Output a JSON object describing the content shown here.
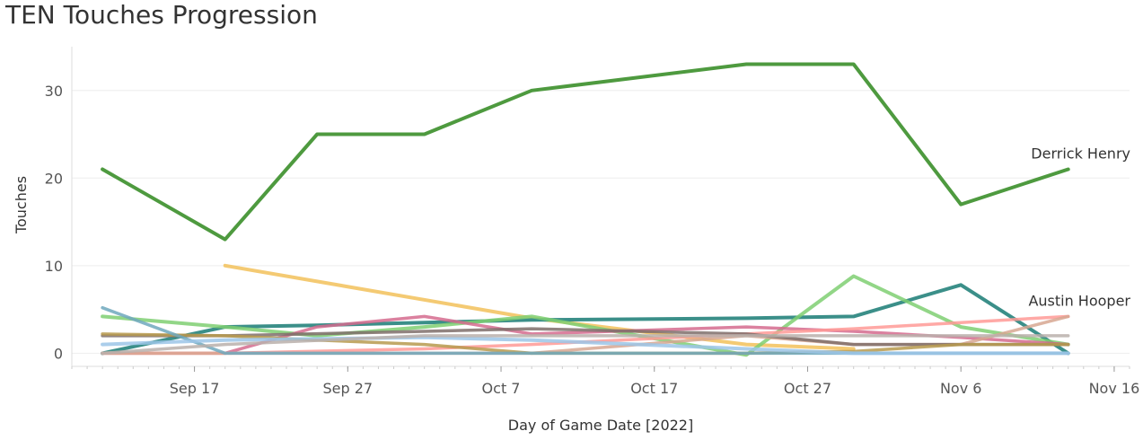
{
  "chart_data": {
    "type": "line",
    "title": "TEN Touches Progression",
    "xlabel": "Day of Game Date [2022]",
    "ylabel": "Touches",
    "x_ticks": [
      "Sep 17",
      "Sep 27",
      "Oct 7",
      "Oct 17",
      "Oct 27",
      "Nov 6",
      "Nov 16"
    ],
    "y_ticks": [
      0,
      10,
      20,
      30
    ],
    "xlim": [
      "2022-09-09",
      "2022-11-17"
    ],
    "ylim": [
      -1.5,
      35
    ],
    "grid": "horizontal",
    "series": [
      {
        "name": "Derrick Henry",
        "color": "#4e9a3f",
        "width": 4,
        "label": true,
        "points": [
          [
            "2022-09-11",
            21
          ],
          [
            "2022-09-19",
            13
          ],
          [
            "2022-09-25",
            25
          ],
          [
            "2022-10-02",
            25
          ],
          [
            "2022-10-09",
            30
          ],
          [
            "2022-10-23",
            33
          ],
          [
            "2022-10-30",
            33
          ],
          [
            "2022-11-06",
            17
          ],
          [
            "2022-11-13",
            21
          ]
        ]
      },
      {
        "color": "#f2c15a",
        "width": 4,
        "points": [
          [
            "2022-09-19",
            10
          ],
          [
            "2022-10-09",
            4
          ],
          [
            "2022-10-23",
            1
          ],
          [
            "2022-10-30",
            0.5
          ]
        ]
      },
      {
        "name": "Austin Hooper",
        "color": "#3b8f89",
        "width": 4,
        "label": true,
        "points": [
          [
            "2022-09-11",
            0
          ],
          [
            "2022-09-19",
            3
          ],
          [
            "2022-09-25",
            3.2
          ],
          [
            "2022-10-02",
            3.5
          ],
          [
            "2022-10-09",
            3.8
          ],
          [
            "2022-10-23",
            4
          ],
          [
            "2022-10-30",
            4.2
          ],
          [
            "2022-11-06",
            7.8
          ],
          [
            "2022-11-13",
            0
          ]
        ]
      },
      {
        "color": "#7fcf72",
        "width": 4,
        "points": [
          [
            "2022-09-11",
            4.2
          ],
          [
            "2022-09-19",
            3
          ],
          [
            "2022-09-25",
            2
          ],
          [
            "2022-10-02",
            3
          ],
          [
            "2022-10-09",
            4.2
          ],
          [
            "2022-10-16",
            2
          ],
          [
            "2022-10-23",
            -0.2
          ],
          [
            "2022-10-30",
            8.8
          ],
          [
            "2022-11-06",
            3
          ],
          [
            "2022-11-13",
            1
          ]
        ]
      },
      {
        "color": "#d56b8e",
        "width": 3.5,
        "points": [
          [
            "2022-09-11",
            0
          ],
          [
            "2022-09-19",
            0
          ],
          [
            "2022-09-25",
            3
          ],
          [
            "2022-10-02",
            4.2
          ],
          [
            "2022-10-09",
            2.2
          ],
          [
            "2022-10-23",
            3
          ],
          [
            "2022-10-30",
            2.5
          ],
          [
            "2022-11-06",
            1.8
          ],
          [
            "2022-11-13",
            1
          ]
        ]
      },
      {
        "color": "#ff9a96",
        "width": 3.5,
        "points": [
          [
            "2022-09-11",
            0
          ],
          [
            "2022-09-19",
            0
          ],
          [
            "2022-10-02",
            0.5
          ],
          [
            "2022-10-09",
            1
          ],
          [
            "2022-10-23",
            2.2
          ],
          [
            "2022-10-30",
            2.8
          ],
          [
            "2022-11-06",
            3.5
          ],
          [
            "2022-11-13",
            4.2
          ]
        ]
      },
      {
        "color": "#d7a792",
        "width": 3.5,
        "points": [
          [
            "2022-09-11",
            0
          ],
          [
            "2022-09-19",
            0
          ],
          [
            "2022-10-02",
            0
          ],
          [
            "2022-10-09",
            0
          ],
          [
            "2022-10-23",
            2
          ],
          [
            "2022-10-30",
            1
          ],
          [
            "2022-11-06",
            1
          ],
          [
            "2022-11-13",
            4.2
          ]
        ]
      },
      {
        "color": "#7f6f6b",
        "width": 3.5,
        "points": [
          [
            "2022-09-11",
            2
          ],
          [
            "2022-09-19",
            2
          ],
          [
            "2022-10-02",
            2.5
          ],
          [
            "2022-10-09",
            2.8
          ],
          [
            "2022-10-23",
            2.2
          ],
          [
            "2022-10-30",
            1
          ],
          [
            "2022-11-06",
            1
          ],
          [
            "2022-11-13",
            1
          ]
        ]
      },
      {
        "color": "#b79a4d",
        "width": 3.5,
        "points": [
          [
            "2022-09-11",
            2.2
          ],
          [
            "2022-09-19",
            2
          ],
          [
            "2022-09-25",
            1.5
          ],
          [
            "2022-10-02",
            1
          ],
          [
            "2022-10-09",
            0
          ],
          [
            "2022-10-23",
            0
          ],
          [
            "2022-10-30",
            0.2
          ],
          [
            "2022-11-06",
            1
          ],
          [
            "2022-11-13",
            1
          ]
        ]
      },
      {
        "color": "#6fa8bd",
        "width": 3.5,
        "points": [
          [
            "2022-09-11",
            5.2
          ],
          [
            "2022-09-19",
            0
          ],
          [
            "2022-10-02",
            0
          ],
          [
            "2022-10-09",
            0
          ],
          [
            "2022-10-23",
            0
          ],
          [
            "2022-10-30",
            0
          ],
          [
            "2022-11-06",
            0
          ],
          [
            "2022-11-13",
            0
          ]
        ]
      },
      {
        "color": "#9cc5e8",
        "width": 4,
        "points": [
          [
            "2022-09-11",
            1
          ],
          [
            "2022-09-19",
            1.5
          ],
          [
            "2022-10-02",
            1.8
          ],
          [
            "2022-10-09",
            1.5
          ],
          [
            "2022-10-23",
            0.5
          ],
          [
            "2022-10-30",
            0
          ],
          [
            "2022-11-06",
            0
          ],
          [
            "2022-11-13",
            0
          ]
        ]
      },
      {
        "color": "#bab0ac",
        "width": 3.5,
        "points": [
          [
            "2022-09-11",
            0
          ],
          [
            "2022-09-19",
            1
          ],
          [
            "2022-10-02",
            2
          ],
          [
            "2022-10-09",
            2
          ],
          [
            "2022-10-23",
            2
          ],
          [
            "2022-10-30",
            2
          ],
          [
            "2022-11-06",
            2
          ],
          [
            "2022-11-13",
            2
          ]
        ]
      }
    ]
  }
}
